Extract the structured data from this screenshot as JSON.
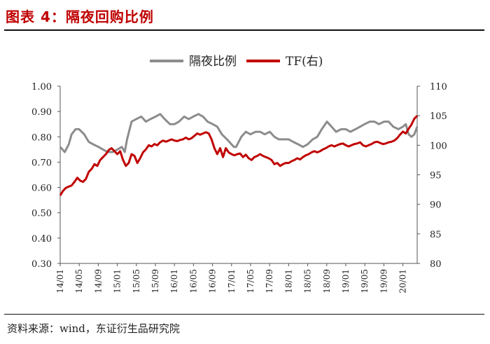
{
  "figure": {
    "title": "图表 4：隔夜回购比例",
    "source": "资料来源：wind，东证衍生品研究院"
  },
  "colors": {
    "overnight": "#8c8c8c",
    "tf": "#c00000",
    "title": "#c00000"
  },
  "chart_data": {
    "type": "line",
    "legend_position": "top-center",
    "grid": false,
    "left_axis": {
      "ylim": [
        0.3,
        1.0
      ],
      "ticks": [
        "0.30",
        "0.40",
        "0.50",
        "0.60",
        "0.70",
        "0.80",
        "0.90",
        "1.00"
      ]
    },
    "right_axis": {
      "ylim": [
        80,
        110
      ],
      "ticks": [
        "80",
        "85",
        "90",
        "95",
        "100",
        "105",
        "110"
      ]
    },
    "x_ticks": [
      "14/01",
      "14/05",
      "14/09",
      "15/01",
      "15/05",
      "15/09",
      "16/01",
      "16/05",
      "16/09",
      "17/01",
      "17/05",
      "17/09",
      "18/01",
      "18/05",
      "18/09",
      "19/01",
      "19/05",
      "19/09",
      "20/01"
    ],
    "x_range": [
      2014.0,
      2020.25
    ],
    "series": [
      {
        "name": "隔夜比例",
        "axis": "left",
        "x": [
          2014.0,
          2014.08,
          2014.15,
          2014.2,
          2014.27,
          2014.33,
          2014.42,
          2014.5,
          2014.58,
          2014.67,
          2014.75,
          2014.83,
          2014.92,
          2015.0,
          2015.08,
          2015.13,
          2015.17,
          2015.25,
          2015.33,
          2015.42,
          2015.5,
          2015.58,
          2015.67,
          2015.75,
          2015.83,
          2015.92,
          2016.0,
          2016.08,
          2016.17,
          2016.25,
          2016.33,
          2016.42,
          2016.5,
          2016.58,
          2016.67,
          2016.75,
          2016.83,
          2016.92,
          2017.0,
          2017.04,
          2017.08,
          2017.17,
          2017.25,
          2017.33,
          2017.42,
          2017.5,
          2017.58,
          2017.67,
          2017.75,
          2017.83,
          2017.92,
          2018.0,
          2018.08,
          2018.17,
          2018.25,
          2018.33,
          2018.42,
          2018.5,
          2018.58,
          2018.67,
          2018.75,
          2018.83,
          2018.92,
          2019.0,
          2019.08,
          2019.17,
          2019.25,
          2019.33,
          2019.42,
          2019.5,
          2019.58,
          2019.67,
          2019.75,
          2019.83,
          2019.92,
          2020.0,
          2020.05,
          2020.1,
          2020.15,
          2020.2,
          2020.25
        ],
        "values": [
          0.76,
          0.74,
          0.77,
          0.81,
          0.83,
          0.83,
          0.81,
          0.78,
          0.77,
          0.76,
          0.75,
          0.74,
          0.74,
          0.75,
          0.76,
          0.74,
          0.79,
          0.86,
          0.87,
          0.88,
          0.86,
          0.87,
          0.88,
          0.89,
          0.87,
          0.85,
          0.85,
          0.86,
          0.88,
          0.87,
          0.88,
          0.89,
          0.88,
          0.86,
          0.85,
          0.84,
          0.81,
          0.79,
          0.77,
          0.76,
          0.76,
          0.8,
          0.82,
          0.81,
          0.82,
          0.82,
          0.81,
          0.82,
          0.8,
          0.79,
          0.79,
          0.79,
          0.78,
          0.77,
          0.76,
          0.77,
          0.79,
          0.8,
          0.83,
          0.86,
          0.84,
          0.82,
          0.83,
          0.83,
          0.82,
          0.83,
          0.84,
          0.85,
          0.86,
          0.86,
          0.85,
          0.86,
          0.86,
          0.84,
          0.83,
          0.84,
          0.85,
          0.81,
          0.8,
          0.81,
          0.84
        ]
      },
      {
        "name": "TF(右)",
        "axis": "right",
        "x": [
          2014.0,
          2014.05,
          2014.1,
          2014.15,
          2014.2,
          2014.25,
          2014.3,
          2014.35,
          2014.4,
          2014.45,
          2014.5,
          2014.55,
          2014.6,
          2014.65,
          2014.7,
          2014.75,
          2014.8,
          2014.85,
          2014.9,
          2014.95,
          2015.0,
          2015.05,
          2015.1,
          2015.15,
          2015.2,
          2015.25,
          2015.3,
          2015.35,
          2015.4,
          2015.45,
          2015.5,
          2015.55,
          2015.6,
          2015.65,
          2015.7,
          2015.75,
          2015.8,
          2015.85,
          2015.9,
          2015.95,
          2016.0,
          2016.05,
          2016.1,
          2016.15,
          2016.2,
          2016.25,
          2016.3,
          2016.35,
          2016.4,
          2016.45,
          2016.5,
          2016.55,
          2016.6,
          2016.65,
          2016.7,
          2016.75,
          2016.8,
          2016.85,
          2016.9,
          2016.95,
          2017.0,
          2017.05,
          2017.1,
          2017.15,
          2017.2,
          2017.25,
          2017.3,
          2017.35,
          2017.4,
          2017.45,
          2017.5,
          2017.55,
          2017.6,
          2017.65,
          2017.7,
          2017.75,
          2017.8,
          2017.85,
          2017.9,
          2017.95,
          2018.0,
          2018.05,
          2018.1,
          2018.15,
          2018.2,
          2018.25,
          2018.3,
          2018.35,
          2018.4,
          2018.45,
          2018.5,
          2018.55,
          2018.6,
          2018.65,
          2018.7,
          2018.75,
          2018.8,
          2018.85,
          2018.9,
          2018.95,
          2019.0,
          2019.05,
          2019.1,
          2019.15,
          2019.2,
          2019.25,
          2019.3,
          2019.35,
          2019.4,
          2019.45,
          2019.5,
          2019.55,
          2019.6,
          2019.65,
          2019.7,
          2019.75,
          2019.8,
          2019.85,
          2019.9,
          2019.95,
          2020.0,
          2020.05,
          2020.1,
          2020.15,
          2020.2,
          2020.25
        ],
        "values": [
          91.5,
          92.3,
          92.8,
          93.0,
          93.2,
          93.8,
          94.5,
          94.0,
          93.8,
          94.3,
          95.5,
          96.0,
          96.8,
          96.5,
          97.5,
          98.0,
          98.5,
          99.2,
          99.5,
          99.0,
          98.5,
          99.0,
          97.5,
          96.5,
          97.0,
          98.5,
          98.2,
          97.0,
          97.8,
          98.8,
          99.3,
          100.0,
          99.8,
          100.2,
          100.0,
          100.5,
          100.8,
          100.6,
          100.8,
          101.0,
          100.8,
          100.7,
          100.9,
          101.0,
          101.3,
          101.0,
          101.2,
          101.6,
          102.0,
          101.8,
          102.0,
          102.2,
          102.0,
          101.0,
          99.5,
          98.5,
          99.5,
          98.0,
          99.5,
          98.8,
          98.5,
          98.3,
          98.5,
          98.6,
          98.0,
          98.4,
          97.8,
          97.5,
          98.0,
          98.2,
          98.5,
          98.2,
          98.0,
          97.8,
          97.5,
          96.8,
          97.0,
          96.5,
          96.8,
          97.0,
          97.0,
          97.3,
          97.5,
          97.8,
          97.6,
          98.0,
          98.3,
          98.5,
          98.8,
          99.0,
          98.8,
          99.0,
          99.3,
          99.5,
          99.8,
          100.0,
          99.8,
          100.0,
          100.2,
          100.3,
          100.0,
          99.8,
          100.0,
          100.2,
          100.3,
          100.5,
          100.0,
          99.8,
          100.0,
          100.2,
          100.5,
          100.6,
          100.4,
          100.2,
          100.3,
          100.5,
          100.6,
          100.8,
          101.2,
          101.8,
          102.3,
          102.0,
          102.8,
          103.5,
          104.5,
          105.0
        ]
      }
    ]
  }
}
